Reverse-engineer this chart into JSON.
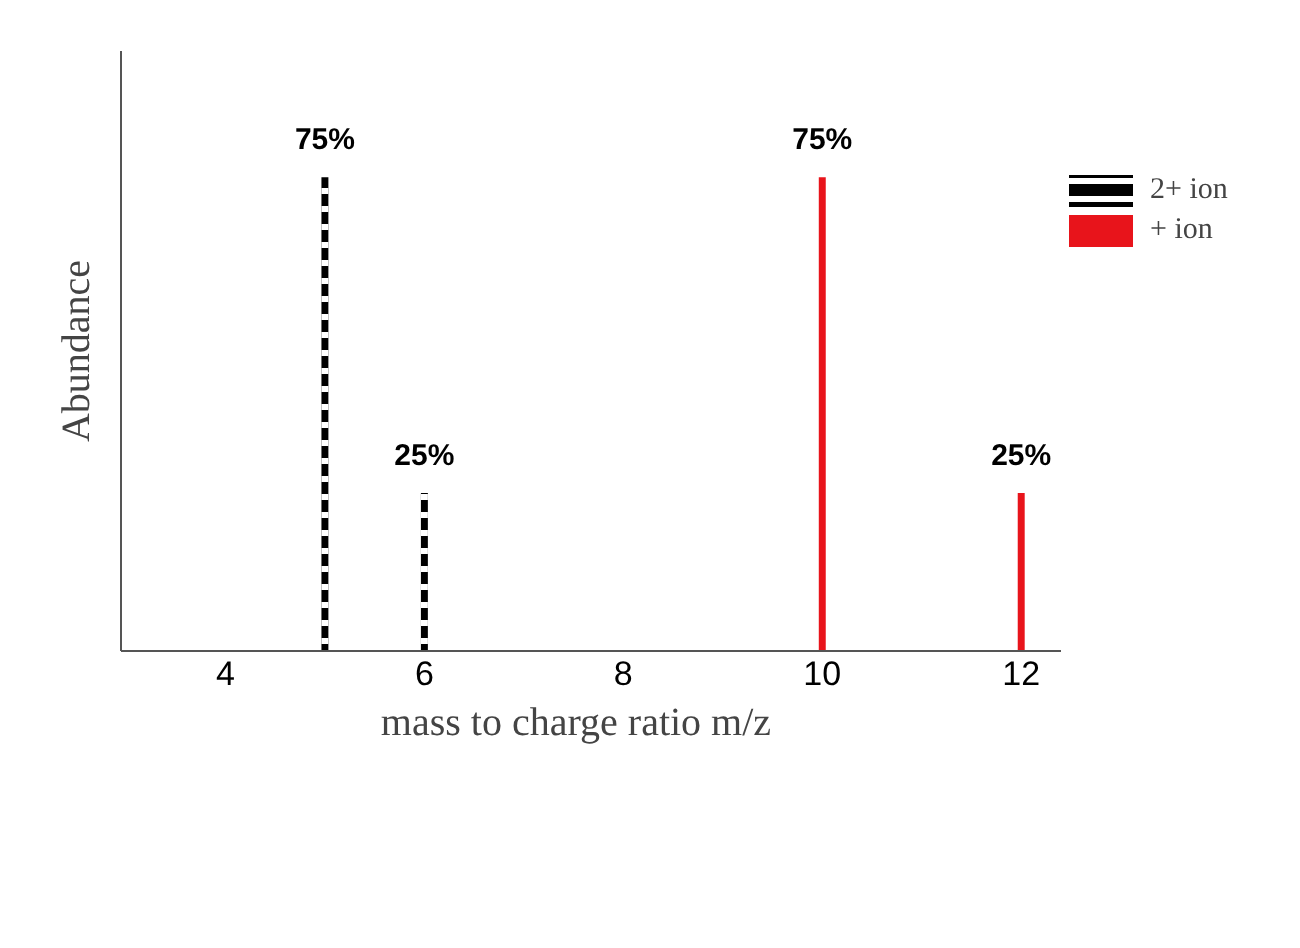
{
  "chart_data": {
    "type": "bar",
    "xlabel": "mass to charge ratio    m/z",
    "ylabel": "Abundance",
    "xlim": [
      2.95,
      12.4
    ],
    "xticks": [
      4,
      6,
      8,
      10,
      12
    ],
    "ylim": [
      0,
      95
    ],
    "tick_labels": "x",
    "grid": false,
    "legend": "right",
    "series": [
      {
        "name": "2+ ion",
        "color": "#000000",
        "line_style": "dashed",
        "x": [
          5,
          6
        ],
        "values": [
          75,
          25
        ],
        "value_labels": [
          "75%",
          "25%"
        ]
      },
      {
        "name": "+ ion",
        "color": "#e8141b",
        "line_style": "solid",
        "x": [
          10,
          12
        ],
        "values": [
          75,
          25
        ],
        "value_labels": [
          "75%",
          "25%"
        ]
      }
    ]
  }
}
